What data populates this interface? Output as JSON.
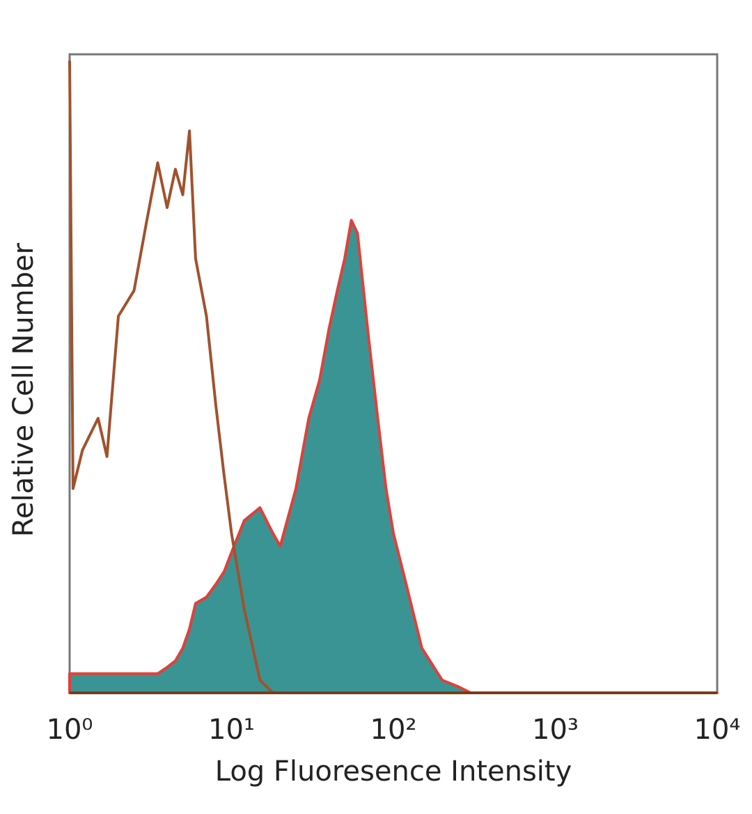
{
  "chart_data": {
    "type": "histogram-overlay",
    "xlabel": "Log Fluoresence Intensity",
    "ylabel": "Relative Cell Number",
    "xscale": "log",
    "xlim": [
      1,
      10000
    ],
    "ylim": [
      0,
      100
    ],
    "xticks": [
      {
        "value": 1,
        "label": "10⁰"
      },
      {
        "value": 10,
        "label": "10¹"
      },
      {
        "value": 100,
        "label": "10²"
      },
      {
        "value": 1000,
        "label": "10³"
      },
      {
        "value": 10000,
        "label": "10⁴"
      }
    ],
    "x": [
      1,
      1.05,
      1.2,
      1.5,
      1.7,
      2,
      2.5,
      3,
      3.5,
      4,
      4.5,
      5,
      5.5,
      6,
      7,
      8,
      9,
      10,
      12,
      15,
      18,
      20,
      25,
      30,
      35,
      40,
      45,
      50,
      55,
      60,
      70,
      80,
      90,
      100,
      120,
      150,
      200,
      250,
      300,
      1000,
      10000
    ],
    "series": [
      {
        "color": "#3a9494",
        "line_color": "#e0403a",
        "filled": true,
        "values": [
          3,
          3,
          3,
          3,
          3,
          3,
          3,
          3,
          3,
          4,
          5,
          7,
          10,
          14,
          15,
          17,
          19,
          22,
          27,
          29,
          25,
          23,
          32,
          43,
          49,
          57,
          63,
          68,
          74,
          72,
          56,
          43,
          32,
          25,
          17,
          7,
          2,
          1,
          0,
          0,
          0
        ]
      },
      {
        "color": "#a0522d",
        "line_color": "#a0522d",
        "filled": false,
        "values": [
          99,
          32,
          38,
          43,
          37,
          59,
          63,
          74,
          83,
          76,
          82,
          78,
          88,
          68,
          59,
          45,
          34,
          25,
          13,
          2,
          0,
          0,
          0,
          0,
          0,
          0,
          0,
          0,
          0,
          0,
          0,
          0,
          0,
          0,
          0,
          0,
          0,
          0,
          0,
          0,
          0
        ]
      }
    ]
  }
}
